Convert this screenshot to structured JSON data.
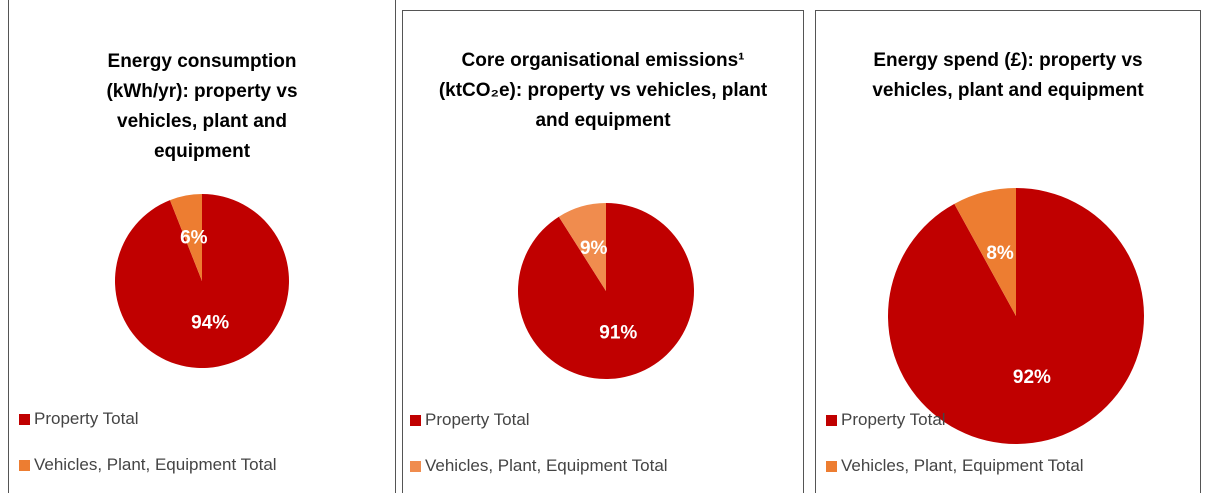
{
  "chart_data": [
    {
      "type": "pie",
      "title": "Energy consumption (kWh/yr): property vs vehicles, plant and equipment",
      "categories": [
        "Property Total",
        "Vehicles, Plant, Equipment Total"
      ],
      "values": [
        94,
        6
      ],
      "value_labels": [
        "94%",
        "6%"
      ],
      "colors": [
        "#c00000",
        "#ed7d31"
      ]
    },
    {
      "type": "pie",
      "title": "Core organisational emissions¹ (ktCO₂e): property vs vehicles, plant and equipment",
      "categories": [
        "Property Total",
        "Vehicles, Plant, Equipment Total"
      ],
      "values": [
        91,
        9
      ],
      "value_labels": [
        "91%",
        "9%"
      ],
      "colors": [
        "#c00000",
        "#f08c4e"
      ]
    },
    {
      "type": "pie",
      "title": "Energy spend (£): property vs vehicles, plant and equipment",
      "categories": [
        "Property Total",
        "Vehicles, Plant, Equipment Total"
      ],
      "values": [
        92,
        8
      ],
      "value_labels": [
        "92%",
        "8%"
      ],
      "colors": [
        "#c00000",
        "#ed7d31"
      ]
    }
  ]
}
